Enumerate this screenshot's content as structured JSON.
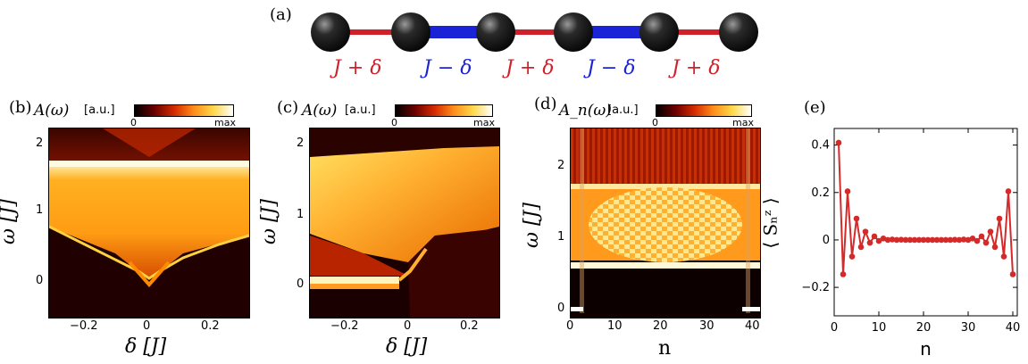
{
  "panel_a": {
    "label": "(a)",
    "bond_labels": [
      "J + δ",
      "J − δ",
      "J + δ",
      "J − δ",
      "J + δ"
    ],
    "colors": {
      "strong": "#d0202a",
      "weak": "#1a23d6"
    }
  },
  "panel_b": {
    "label": "(b)",
    "cbar_title": "A(ω)",
    "cbar_unit": "[a.u.]",
    "cbar_min": "0",
    "cbar_max": "max",
    "xlabel": "δ [J]",
    "ylabel": "ω [J]",
    "xticks": [
      "−0.2",
      "0",
      "0.2"
    ],
    "yticks": [
      "2",
      "1",
      "0"
    ]
  },
  "panel_c": {
    "label": "(c)",
    "cbar_title": "A(ω)",
    "cbar_unit": "[a.u.]",
    "cbar_min": "0",
    "cbar_max": "max",
    "xlabel": "δ [J]",
    "ylabel": "ω [J]",
    "xticks": [
      "−0.2",
      "0",
      "0.2"
    ],
    "yticks": [
      "2",
      "1",
      "0"
    ]
  },
  "panel_d": {
    "label": "(d)",
    "cbar_title": "A_n(ω)",
    "cbar_unit": "[a.u.]",
    "cbar_min": "0",
    "cbar_max": "max",
    "xlabel": "n",
    "ylabel": "ω [J]",
    "xticks": [
      "0",
      "10",
      "20",
      "30",
      "40"
    ],
    "yticks": [
      "2",
      "1",
      "0"
    ]
  },
  "panel_e": {
    "label": "(e)",
    "xlabel": "n",
    "ylabel": "⟨ Sₙᶻ ⟩",
    "xticks": [
      "0",
      "10",
      "20",
      "30",
      "40"
    ],
    "yticks": [
      "0.4",
      "0.2",
      "0",
      "−0.2"
    ]
  },
  "chart_data": {
    "type": "line",
    "xlim": [
      0,
      41
    ],
    "ylim": [
      -0.32,
      0.47
    ],
    "x": [
      1,
      2,
      3,
      4,
      5,
      6,
      7,
      8,
      9,
      10,
      11,
      12,
      13,
      14,
      15,
      16,
      17,
      18,
      19,
      20,
      21,
      22,
      23,
      24,
      25,
      26,
      27,
      28,
      29,
      30,
      31,
      32,
      33,
      34,
      35,
      36,
      37,
      38,
      39,
      40
    ],
    "series": [
      {
        "color": "#d42a2a",
        "values": [
          0.41,
          -0.145,
          0.205,
          -0.07,
          0.09,
          -0.03,
          0.035,
          -0.012,
          0.015,
          -0.004,
          0.006,
          0.0,
          0.002,
          0.0,
          0.001,
          0.0,
          0.0,
          0.0,
          0.0,
          0.0,
          0.0,
          0.0,
          0.0,
          0.0,
          0.0,
          0.0,
          0.001,
          0.0,
          0.002,
          0.0,
          0.006,
          -0.004,
          0.015,
          -0.012,
          0.035,
          -0.03,
          0.09,
          -0.07,
          0.205,
          -0.145
        ]
      }
    ],
    "grid": false
  }
}
